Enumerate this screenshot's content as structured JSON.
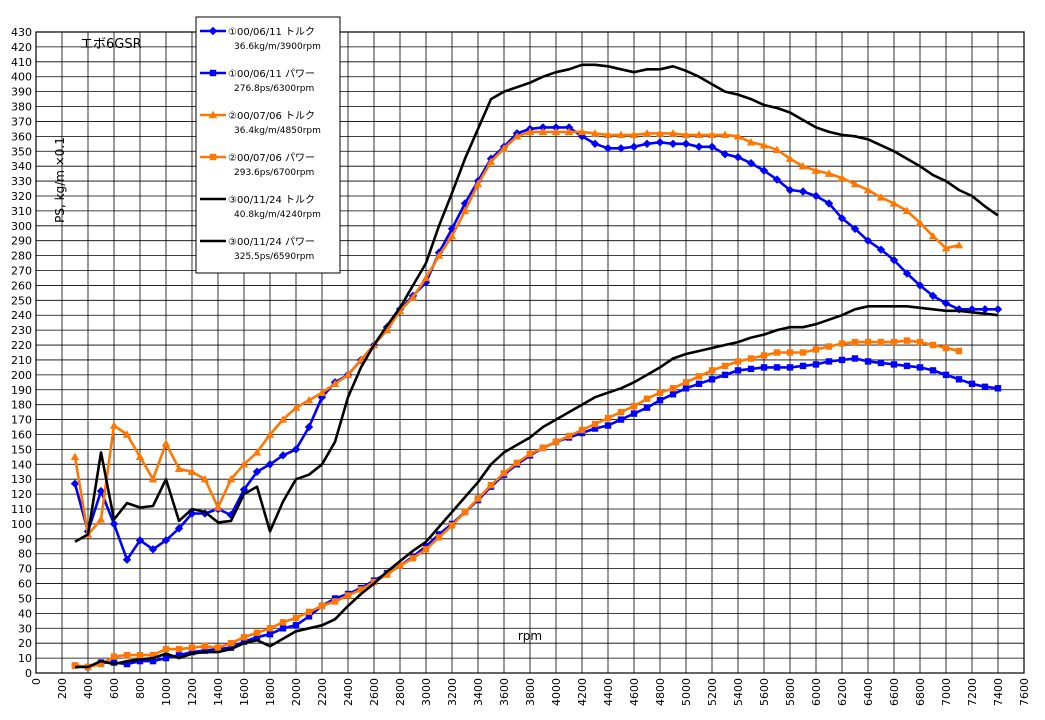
{
  "chart_data": {
    "type": "line",
    "title_note": "エボ6GSR",
    "ylabel": "PS, kg/m ×0.1",
    "xlabel": "rpm",
    "xlim": [
      0,
      7600
    ],
    "ylim": [
      0,
      430
    ],
    "x_step": 200,
    "y_step": 10,
    "grid": true,
    "legend_position": "top-left",
    "series": [
      {
        "name": "①00/06/11 トルク",
        "peak": "36.6kg/m/3900rpm",
        "color": "#0000ff",
        "marker": "diamond",
        "x": [
          300,
          400,
          500,
          600,
          700,
          800,
          900,
          1000,
          1100,
          1200,
          1300,
          1400,
          1500,
          1600,
          1700,
          1800,
          1900,
          2000,
          2100,
          2200,
          2300,
          2400,
          2500,
          2600,
          2700,
          2800,
          2900,
          3000,
          3100,
          3200,
          3300,
          3400,
          3500,
          3600,
          3700,
          3800,
          3900,
          4000,
          4100,
          4200,
          4300,
          4400,
          4500,
          4600,
          4700,
          4800,
          4900,
          5000,
          5100,
          5200,
          5300,
          5400,
          5500,
          5600,
          5700,
          5800,
          5900,
          6000,
          6100,
          6200,
          6300,
          6400,
          6500,
          6600,
          6700,
          6800,
          6900,
          7000,
          7100,
          7200,
          7300,
          7400
        ],
        "y": [
          127,
          95,
          122,
          100,
          76,
          89,
          83,
          89,
          97,
          107,
          107,
          110,
          106,
          123,
          135,
          140,
          146,
          150,
          165,
          185,
          195,
          200,
          210,
          220,
          232,
          244,
          253,
          262,
          282,
          298,
          315,
          330,
          345,
          353,
          362,
          365,
          366,
          366,
          366,
          360,
          355,
          352,
          352,
          353,
          355,
          356,
          355,
          355,
          353,
          353,
          348,
          346,
          342,
          337,
          331,
          324,
          323,
          320,
          315,
          305,
          298,
          290,
          284,
          277,
          268,
          260,
          253,
          248,
          244,
          244,
          244,
          244
        ]
      },
      {
        "name": "①00/06/11 パワー",
        "peak": "276.8ps/6300rpm",
        "color": "#0000ff",
        "marker": "square",
        "x": [
          300,
          400,
          500,
          600,
          700,
          800,
          900,
          1000,
          1100,
          1200,
          1300,
          1400,
          1500,
          1600,
          1700,
          1800,
          1900,
          2000,
          2100,
          2200,
          2300,
          2400,
          2500,
          2600,
          2700,
          2800,
          2900,
          3000,
          3100,
          3200,
          3300,
          3400,
          3500,
          3600,
          3700,
          3800,
          3900,
          4000,
          4100,
          4200,
          4300,
          4400,
          4500,
          4600,
          4700,
          4800,
          4900,
          5000,
          5100,
          5200,
          5300,
          5400,
          5500,
          5600,
          5700,
          5800,
          5900,
          6000,
          6100,
          6200,
          6300,
          6400,
          6500,
          6600,
          6700,
          6800,
          6900,
          7000,
          7100,
          7200,
          7300,
          7400
        ],
        "y": [
          5,
          4,
          7,
          7,
          6,
          8,
          8,
          10,
          12,
          14,
          15,
          16,
          17,
          21,
          24,
          26,
          30,
          32,
          38,
          45,
          50,
          53,
          57,
          62,
          67,
          72,
          78,
          85,
          93,
          100,
          108,
          116,
          125,
          133,
          140,
          146,
          151,
          155,
          158,
          161,
          164,
          166,
          170,
          174,
          178,
          183,
          187,
          191,
          194,
          197,
          200,
          203,
          204,
          205,
          205,
          205,
          206,
          207,
          209,
          210,
          211,
          209,
          208,
          207,
          206,
          205,
          203,
          200,
          197,
          194,
          192,
          191
        ]
      },
      {
        "name": "②00/07/06 トルク",
        "peak": "36.4kg/m/4850rpm",
        "color": "#ff7700",
        "marker": "triangle",
        "x": [
          300,
          400,
          500,
          600,
          700,
          800,
          900,
          1000,
          1100,
          1200,
          1300,
          1400,
          1500,
          1600,
          1700,
          1800,
          1900,
          2000,
          2100,
          2200,
          2300,
          2400,
          2500,
          2600,
          2700,
          2800,
          2900,
          3000,
          3100,
          3200,
          3300,
          3400,
          3500,
          3600,
          3700,
          3800,
          3900,
          4000,
          4100,
          4200,
          4300,
          4400,
          4500,
          4600,
          4700,
          4800,
          4900,
          5000,
          5100,
          5200,
          5300,
          5400,
          5500,
          5600,
          5700,
          5800,
          5900,
          6000,
          6100,
          6200,
          6300,
          6400,
          6500,
          6600,
          6700,
          6800,
          6900,
          7000,
          7100
        ],
        "y": [
          145,
          93,
          103,
          166,
          160,
          145,
          130,
          154,
          137,
          135,
          130,
          111,
          130,
          140,
          148,
          160,
          170,
          178,
          183,
          188,
          194,
          200,
          210,
          220,
          230,
          243,
          252,
          265,
          280,
          293,
          310,
          328,
          343,
          352,
          360,
          363,
          363,
          363,
          363,
          363,
          362,
          361,
          361,
          361,
          362,
          362,
          362,
          361,
          361,
          361,
          361,
          360,
          356,
          354,
          351,
          345,
          340,
          337,
          335,
          332,
          328,
          324,
          319,
          315,
          310,
          302,
          293,
          285,
          287
        ]
      },
      {
        "name": "②00/07/06 パワー",
        "peak": "293.6ps/6700rpm",
        "color": "#ff7700",
        "marker": "square",
        "x": [
          300,
          400,
          500,
          600,
          700,
          800,
          900,
          1000,
          1100,
          1200,
          1300,
          1400,
          1500,
          1600,
          1700,
          1800,
          1900,
          2000,
          2100,
          2200,
          2300,
          2400,
          2500,
          2600,
          2700,
          2800,
          2900,
          3000,
          3100,
          3200,
          3300,
          3400,
          3500,
          3600,
          3700,
          3800,
          3900,
          4000,
          4100,
          4200,
          4300,
          4400,
          4500,
          4600,
          4700,
          4800,
          4900,
          5000,
          5100,
          5200,
          5300,
          5400,
          5500,
          5600,
          5700,
          5800,
          5900,
          6000,
          6100,
          6200,
          6300,
          6400,
          6500,
          6600,
          6700,
          6800,
          6900,
          7000,
          7100
        ],
        "y": [
          5,
          4,
          6,
          11,
          12,
          12,
          12,
          16,
          16,
          17,
          18,
          17,
          20,
          24,
          27,
          30,
          34,
          37,
          41,
          45,
          48,
          52,
          56,
          61,
          66,
          72,
          77,
          83,
          91,
          99,
          108,
          117,
          126,
          134,
          141,
          147,
          151,
          155,
          159,
          163,
          167,
          171,
          175,
          179,
          184,
          188,
          191,
          195,
          199,
          203,
          206,
          209,
          211,
          213,
          215,
          215,
          215,
          217,
          219,
          221,
          222,
          222,
          222,
          222,
          223,
          222,
          220,
          218,
          216
        ]
      },
      {
        "name": "③00/11/24 トルク",
        "peak": "40.8kg/m/4240rpm",
        "color": "#000000",
        "marker": "none",
        "x": [
          300,
          400,
          500,
          600,
          700,
          800,
          900,
          1000,
          1100,
          1200,
          1300,
          1400,
          1500,
          1600,
          1700,
          1800,
          1900,
          2000,
          2100,
          2200,
          2300,
          2400,
          2500,
          2600,
          2700,
          2800,
          2900,
          3000,
          3100,
          3200,
          3300,
          3400,
          3500,
          3600,
          3700,
          3800,
          3900,
          4000,
          4100,
          4200,
          4300,
          4400,
          4500,
          4600,
          4700,
          4800,
          4900,
          5000,
          5100,
          5200,
          5300,
          5400,
          5500,
          5600,
          5700,
          5800,
          5900,
          6000,
          6100,
          6200,
          6300,
          6400,
          6500,
          6600,
          6700,
          6800,
          6900,
          7000,
          7100,
          7200,
          7300,
          7400
        ],
        "y": [
          88,
          93,
          148,
          103,
          114,
          111,
          112,
          130,
          102,
          110,
          108,
          101,
          102,
          120,
          125,
          95,
          115,
          130,
          133,
          140,
          155,
          185,
          205,
          220,
          233,
          245,
          260,
          275,
          300,
          322,
          345,
          365,
          385,
          390,
          393,
          396,
          400,
          403,
          405,
          408,
          408,
          407,
          405,
          403,
          405,
          405,
          407,
          404,
          400,
          395,
          390,
          388,
          385,
          381,
          379,
          376,
          371,
          366,
          363,
          361,
          360,
          358,
          354,
          350,
          345,
          340,
          334,
          330,
          324,
          320,
          313,
          307
        ]
      },
      {
        "name": "③00/11/24 パワー",
        "peak": "325.5ps/6590rpm",
        "color": "#000000",
        "marker": "none",
        "x": [
          300,
          400,
          500,
          600,
          700,
          800,
          900,
          1000,
          1100,
          1200,
          1300,
          1400,
          1500,
          1600,
          1700,
          1800,
          1900,
          2000,
          2100,
          2200,
          2300,
          2400,
          2500,
          2600,
          2700,
          2800,
          2900,
          3000,
          3100,
          3200,
          3300,
          3400,
          3500,
          3600,
          3700,
          3800,
          3900,
          4000,
          4100,
          4200,
          4300,
          4400,
          4500,
          4600,
          4700,
          4800,
          4900,
          5000,
          5100,
          5200,
          5300,
          5400,
          5500,
          5600,
          5700,
          5800,
          5900,
          6000,
          6100,
          6200,
          6300,
          6400,
          6500,
          6600,
          6700,
          6800,
          6900,
          7000,
          7100,
          7200,
          7300,
          7400
        ],
        "y": [
          4,
          4,
          8,
          6,
          8,
          9,
          10,
          13,
          10,
          13,
          14,
          14,
          16,
          20,
          22,
          18,
          23,
          28,
          30,
          32,
          36,
          45,
          53,
          60,
          68,
          75,
          82,
          88,
          98,
          108,
          118,
          128,
          140,
          148,
          153,
          158,
          165,
          170,
          175,
          180,
          185,
          188,
          191,
          195,
          200,
          205,
          211,
          214,
          216,
          218,
          220,
          222,
          225,
          227,
          230,
          232,
          232,
          234,
          237,
          240,
          244,
          246,
          246,
          246,
          246,
          245,
          244,
          243,
          243,
          242,
          241,
          240
        ]
      }
    ]
  }
}
